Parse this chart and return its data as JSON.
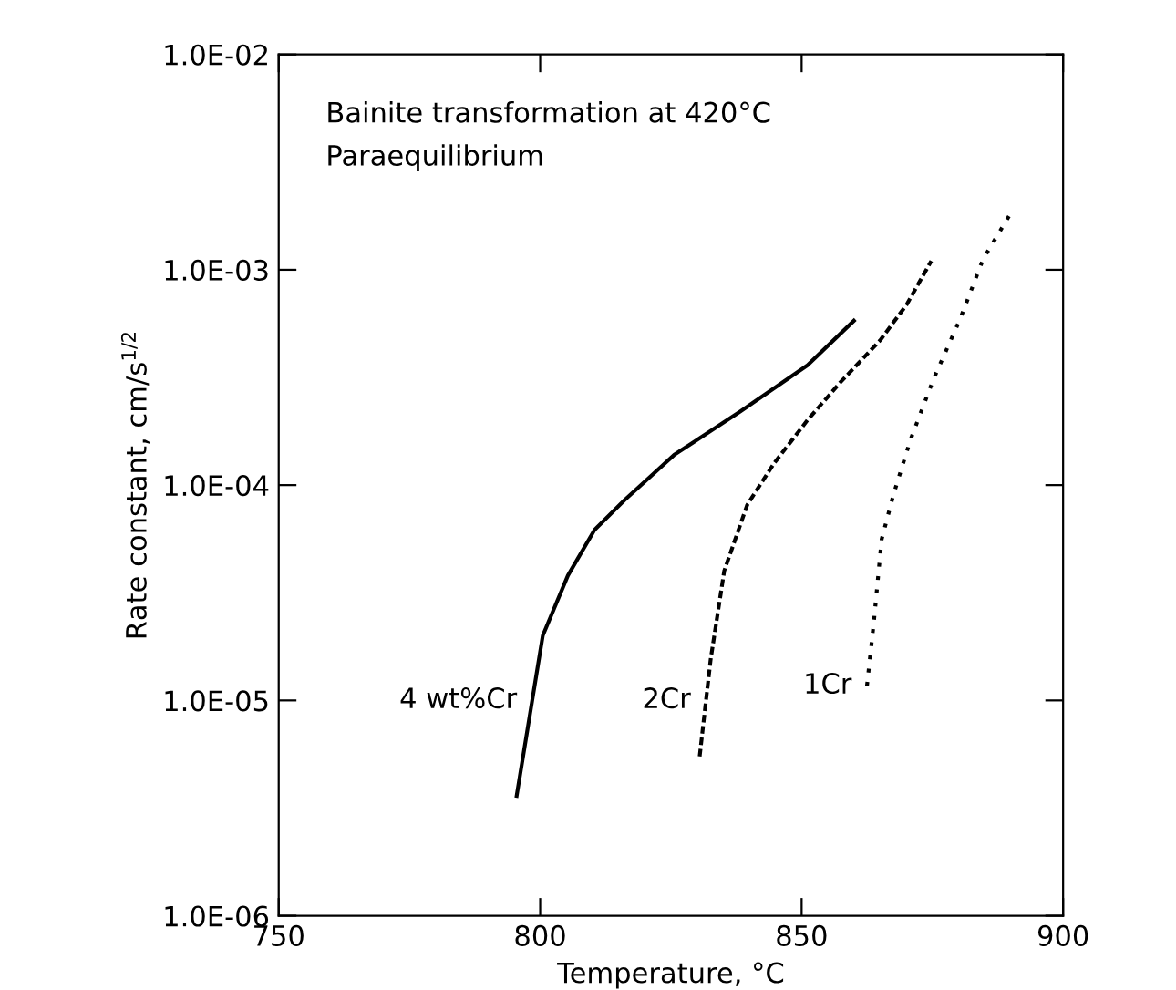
{
  "chart_data": {
    "type": "line",
    "xlabel": "Temperature, °C",
    "ylabel": "Rate constant, cm/s$^{1/2}$",
    "log": "y",
    "xlim": [
      750,
      900
    ],
    "xticks": [
      750,
      800,
      850,
      900
    ],
    "ylim": [
      1e-06,
      0.01
    ],
    "yticks": [
      {
        "value": 1e-06,
        "label": "1.0E-06"
      },
      {
        "value": 1e-05,
        "label": "1.0E-05"
      },
      {
        "value": 0.0001,
        "label": "1.0E-04"
      },
      {
        "value": 0.001,
        "label": "1.0E-03"
      },
      {
        "value": 0.01,
        "label": "1.0E-02"
      }
    ],
    "grid": false,
    "legend": false,
    "annotations": [
      "Bainite transformation at 420°C",
      "Paraequilibrium"
    ],
    "series": [
      {
        "name": "4 wt%Cr",
        "color": "#000000",
        "line_style": "solid",
        "x": [
          795.5,
          800.5,
          805.3,
          810.4,
          816.1,
          825.6,
          838.3,
          851.1,
          860.0
        ],
        "values": [
          3.6e-06,
          2e-05,
          3.8e-05,
          6.2e-05,
          8.5e-05,
          0.000138,
          0.00022,
          0.00036,
          0.00058
        ]
      },
      {
        "name": "2Cr",
        "color": "#000000",
        "line_style": "dashed",
        "x": [
          830.5,
          832.6,
          835.2,
          839.6,
          844.7,
          851.1,
          857.4,
          865.0,
          870.1,
          874.8
        ],
        "values": [
          5.5e-06,
          1.55e-05,
          4e-05,
          8.1e-05,
          0.000126,
          0.0002,
          0.0003,
          0.00047,
          0.00069,
          0.0011
        ]
      },
      {
        "name": "1Cr",
        "color": "#000000",
        "line_style": "dotted",
        "x": [
          862.5,
          863.8,
          865.3,
          867.6,
          870.8,
          875.2,
          880.3,
          884.7,
          889.8
        ],
        "values": [
          1.17e-05,
          2.3e-05,
          5.6e-05,
          9.1e-05,
          0.000162,
          0.00031,
          0.00059,
          0.00112,
          0.0018
        ]
      }
    ]
  }
}
